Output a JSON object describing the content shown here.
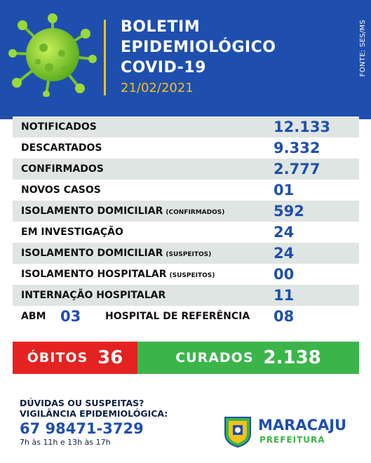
{
  "header": {
    "title_line1": "BOLETIM",
    "title_line2": "EPIDEMIOLÓGICO",
    "title_line3": "COVID-19",
    "date": "21/02/2021",
    "source": "FONTE: SES/MS",
    "colors": {
      "background": "#1e4fae",
      "accent": "#f2c21b"
    }
  },
  "stats": {
    "notificados": {
      "label": "NOTIFICADOS",
      "value": "12.133"
    },
    "descartados": {
      "label": "DESCARTADOS",
      "value": "9.332"
    },
    "confirmados": {
      "label": "CONFIRMADOS",
      "value": "2.777"
    },
    "novos_casos": {
      "label": "NOVOS CASOS",
      "value": "01"
    },
    "isolamento_conf": {
      "label": "ISOLAMENTO DOMICILIAR",
      "qualifier": "(CONFIRMADOS)",
      "value": "592"
    },
    "investigacao": {
      "label": "EM INVESTIGAÇÃO",
      "value": "24"
    },
    "isolamento_susp": {
      "label": "ISOLAMENTO DOMICILIAR",
      "qualifier": "(SUSPEITOS)",
      "value": "24"
    },
    "hospitalar_susp": {
      "label": "ISOLAMENTO HOSPITALAR",
      "qualifier": "(SUSPEITOS)",
      "value": "00"
    },
    "internacao": {
      "label": "INTERNAÇÃO HOSPITALAR",
      "value": "11"
    },
    "abm": {
      "label": "ABM",
      "value": "03"
    },
    "hospital_ref": {
      "label": "HOSPITAL DE REFERÊNCIA",
      "value": "08"
    }
  },
  "outcome": {
    "obitos_label": "ÓBITOS",
    "obitos_value": "36",
    "curados_label": "CURADOS",
    "curados_value": "2.138",
    "colors": {
      "obitos": "#e42320",
      "curados": "#3bb54a"
    }
  },
  "footer": {
    "line1": "DÚVIDAS OU SUSPEITAS?",
    "line2": "VIGILÂNCIA EPIDEMIOLÓGICA:",
    "phone": "67 98471-3729",
    "hours": "7h às 11h e 13h às 17h",
    "logo_name": "MARACAJU",
    "logo_sub": "PREFEITURA"
  }
}
